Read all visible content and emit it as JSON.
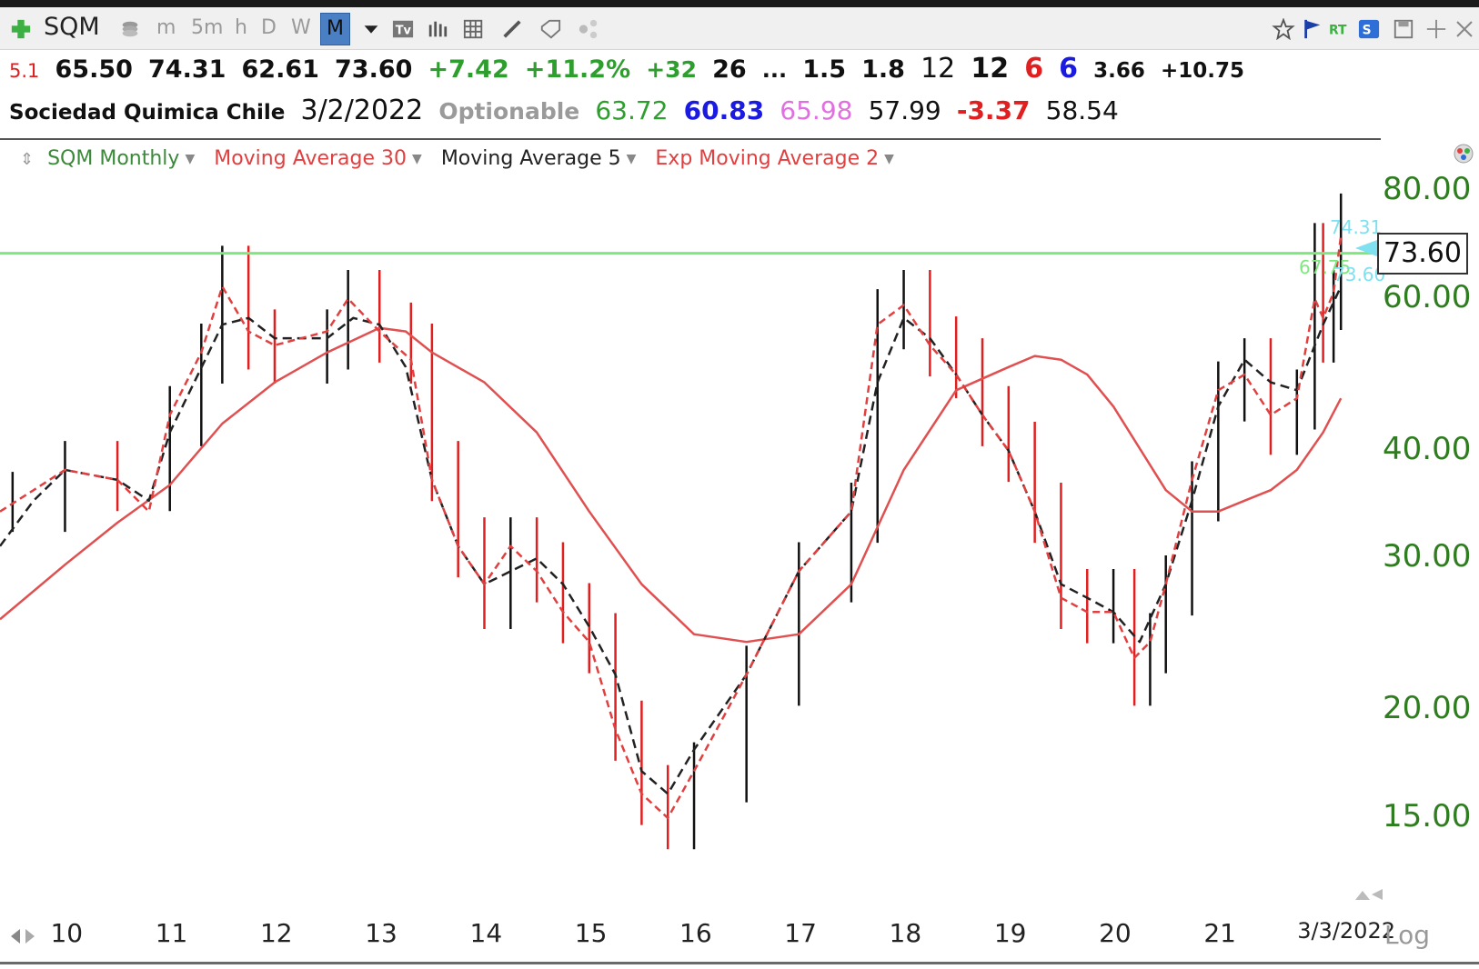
{
  "toolbar": {
    "symbol": "SQM",
    "intervals": [
      "m",
      "5m",
      "h",
      "D",
      "W",
      "M"
    ],
    "active_interval": "M",
    "icons": [
      "add-symbol-icon",
      "stack-icon",
      "dropdown-icon",
      "text-icon",
      "bars-icon",
      "grid-icon",
      "pencil-icon",
      "tag-icon",
      "share-icon",
      "star-icon",
      "flag-icon",
      "rt-icon",
      "s-icon",
      "save-icon",
      "move-icon",
      "close-icon"
    ]
  },
  "quote_line1": {
    "rating": "5.1",
    "open": "65.50",
    "high": "74.31",
    "low": "62.61",
    "close": "73.60",
    "change": "+7.42",
    "change_pct": "+11.2%",
    "rs": "+32",
    "v1": "26",
    "ellipsis": "...",
    "v2": "1.5",
    "v3": "1.8",
    "n1": "12",
    "n2": "12",
    "n3": "6",
    "n4": "6",
    "v4": "3.66",
    "v5": "+10.75"
  },
  "quote_line2": {
    "name": "Sociedad Quimica Chile",
    "date": "3/2/2022",
    "optionable": "Optionable",
    "p1": "63.72",
    "p2": "60.83",
    "p3": "65.98",
    "p4": "57.99",
    "p5": "-3.37",
    "p6": "58.54"
  },
  "colors": {
    "green_text": "#2e9e2e",
    "blue_text": "#1a1ae0",
    "pink_text": "#e070e0",
    "red_text": "#e02020",
    "ma30": "#e05050",
    "ma5": "#222222",
    "ema2": "#e04040",
    "resistance": "#7ee87e",
    "axis_green": "#2e7d1f"
  },
  "legend": [
    {
      "label": "SQM Monthly",
      "color": "#3a8a3a"
    },
    {
      "label": "Moving Average 30",
      "color": "#e04040"
    },
    {
      "label": "Moving Average 5",
      "color": "#222222"
    },
    {
      "label": "Exp Moving Average 2",
      "color": "#e04040"
    }
  ],
  "chart_data": {
    "type": "line",
    "scale": "log",
    "ylim": [
      12.5,
      82
    ],
    "y_ticks": [
      "80.00",
      "60.00",
      "40.00",
      "30.00",
      "20.00",
      "15.00"
    ],
    "y_tick_values": [
      80,
      60,
      40,
      30,
      20,
      15
    ],
    "x_ticks": [
      "10",
      "11",
      "12",
      "13",
      "14",
      "15",
      "16",
      "17",
      "18",
      "19",
      "20",
      "21",
      "3/3/2022"
    ],
    "x_tick_years": [
      2010,
      2011,
      2012,
      2013,
      2014,
      2015,
      2016,
      2017,
      2018,
      2019,
      2020,
      2021,
      2022.17
    ],
    "xlim": [
      2009.38,
      2022.55
    ],
    "last_price": "73.60",
    "tag_high": "74.31",
    "tag_resistance": "67.75",
    "tag_close_small": "73.60",
    "resistance_level": 67.75,
    "log_label": "Log",
    "series": [
      {
        "name": "SQM Monthly",
        "kind": "bars",
        "x": [
          2009.5,
          2010.0,
          2010.5,
          2011.0,
          2011.3,
          2011.5,
          2011.75,
          2012.0,
          2012.5,
          2012.7,
          2013.0,
          2013.3,
          2013.5,
          2013.75,
          2014.0,
          2014.25,
          2014.5,
          2014.75,
          2015.0,
          2015.25,
          2015.5,
          2015.75,
          2016.0,
          2016.5,
          2017.0,
          2017.5,
          2017.75,
          2018.0,
          2018.25,
          2018.5,
          2018.75,
          2019.0,
          2019.25,
          2019.5,
          2019.75,
          2020.0,
          2020.2,
          2020.35,
          2020.5,
          2020.75,
          2021.0,
          2021.25,
          2021.5,
          2021.75,
          2021.92,
          2022.0,
          2022.1,
          2022.17
        ],
        "values": [
          35,
          38,
          37,
          44,
          52,
          64,
          54,
          52,
          54,
          60,
          55,
          52,
          38,
          31,
          27,
          31,
          29,
          26,
          24,
          19,
          16,
          15,
          17,
          22,
          29,
          34,
          57,
          60,
          53,
          50,
          44,
          40,
          34,
          27,
          26,
          27,
          22,
          24,
          28,
          36,
          47,
          50,
          43,
          46,
          68,
          55,
          60,
          73.6
        ]
      },
      {
        "name": "Moving Average 30",
        "kind": "line",
        "x": [
          2009.38,
          2010.0,
          2010.5,
          2011.0,
          2011.5,
          2012.0,
          2012.5,
          2013.0,
          2013.25,
          2013.5,
          2014.0,
          2014.5,
          2015.0,
          2015.5,
          2016.0,
          2016.5,
          2017.0,
          2017.5,
          2018.0,
          2018.5,
          2019.0,
          2019.25,
          2019.5,
          2019.75,
          2020.0,
          2020.5,
          2020.75,
          2021.0,
          2021.25,
          2021.5,
          2021.75,
          2022.0,
          2022.17
        ],
        "values": [
          25.5,
          29.5,
          33,
          36.5,
          43,
          48,
          52,
          55.5,
          55,
          52,
          48,
          42,
          34,
          28,
          24.5,
          24,
          24.5,
          28,
          38,
          47,
          50,
          51.5,
          51,
          49,
          45,
          36,
          34,
          34,
          35,
          36,
          38,
          42,
          46
        ]
      },
      {
        "name": "Moving Average 5",
        "kind": "line",
        "x": [
          2009.38,
          2009.7,
          2010.0,
          2010.5,
          2010.8,
          2011.0,
          2011.5,
          2011.75,
          2012.0,
          2012.5,
          2012.75,
          2013.0,
          2013.25,
          2013.5,
          2013.75,
          2014.0,
          2014.5,
          2014.75,
          2015.0,
          2015.25,
          2015.5,
          2015.75,
          2016.0,
          2016.5,
          2017.0,
          2017.5,
          2017.75,
          2018.0,
          2018.25,
          2018.5,
          2018.75,
          2019.0,
          2019.25,
          2019.5,
          2019.75,
          2020.0,
          2020.25,
          2020.5,
          2020.75,
          2021.0,
          2021.25,
          2021.5,
          2021.75,
          2022.0,
          2022.17
        ],
        "values": [
          31,
          35,
          38,
          37,
          35,
          42,
          56,
          57,
          54,
          54,
          57,
          56,
          50,
          37,
          31,
          28,
          30,
          28,
          25,
          22,
          17,
          16,
          18,
          22,
          29,
          34,
          48,
          57,
          54,
          49,
          44,
          40,
          34,
          28,
          27,
          26,
          24,
          28,
          35,
          45,
          51,
          48,
          47,
          56,
          62
        ]
      },
      {
        "name": "Exp Moving Average 2",
        "kind": "line",
        "x": [
          2009.38,
          2009.7,
          2010.0,
          2010.5,
          2010.8,
          2011.0,
          2011.3,
          2011.5,
          2011.75,
          2012.0,
          2012.5,
          2012.7,
          2013.0,
          2013.3,
          2013.5,
          2013.75,
          2014.0,
          2014.25,
          2014.5,
          2014.75,
          2015.0,
          2015.25,
          2015.5,
          2015.75,
          2016.0,
          2016.5,
          2017.0,
          2017.5,
          2017.75,
          2018.0,
          2018.25,
          2018.5,
          2018.75,
          2019.0,
          2019.25,
          2019.5,
          2019.75,
          2020.0,
          2020.2,
          2020.35,
          2020.5,
          2020.75,
          2021.0,
          2021.25,
          2021.5,
          2021.75,
          2021.92,
          2022.0,
          2022.1,
          2022.17
        ],
        "values": [
          34,
          36,
          38,
          37,
          34,
          44,
          52,
          62,
          55,
          53,
          55,
          60,
          55,
          51,
          37,
          31,
          28,
          31,
          29,
          26,
          24,
          19,
          16,
          15,
          17,
          22,
          29,
          34,
          56,
          59,
          53,
          49,
          44,
          40,
          34,
          27,
          26,
          26,
          23,
          24,
          28,
          37,
          47,
          49,
          44,
          46,
          60,
          57,
          61,
          71
        ]
      }
    ]
  }
}
